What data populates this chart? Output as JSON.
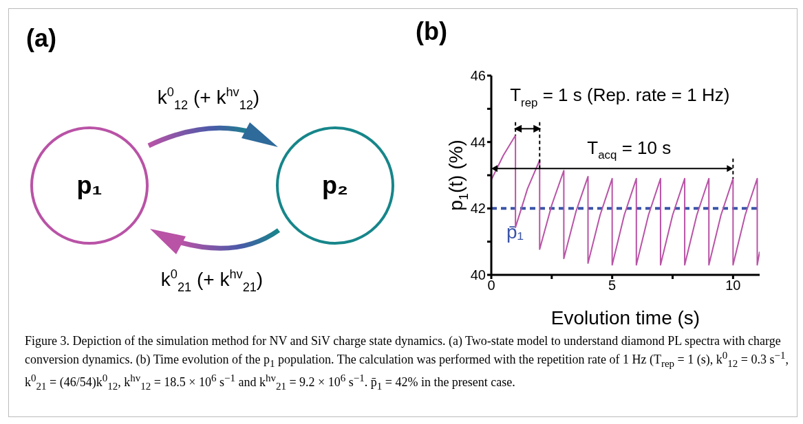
{
  "chart_data": [
    {
      "type": "other",
      "title": "(a)",
      "categories": [
        "p₁",
        "p₂"
      ],
      "colors": [
        "#b953a6",
        "#16868a"
      ],
      "annotations": [
        "k$^{0}$$_{12}$ (+ k$^{hv}$$_{12}$)",
        "k$^{0}$$_{21}$ (+ k$^{hv}$$_{21}$)"
      ]
    },
    {
      "type": "line",
      "title": "(b)",
      "xlabel": "Evolution time (s)",
      "ylabel": "p$_{1}$(t) (%)",
      "x": [
        0,
        0,
        0.5,
        1,
        1,
        1.5,
        2,
        2,
        2.5,
        3,
        3,
        3.5,
        4,
        4,
        4.5,
        5,
        5,
        5.5,
        6,
        6,
        6.5,
        7,
        7,
        7.5,
        8,
        8,
        8.5,
        9,
        9,
        9.5,
        10,
        10,
        10.5,
        11,
        11,
        11.1
      ],
      "series": [
        {
          "color": "#b953a6",
          "values": [
            46,
            42.86,
            43.6,
            44.2,
            41.43,
            42.6,
            43.45,
            40.77,
            42.1,
            43.14,
            40.49,
            41.9,
            42.96,
            40.35,
            41.8,
            42.9,
            40.3,
            41.8,
            42.9,
            40.3,
            41.8,
            42.9,
            40.3,
            41.8,
            42.9,
            40.3,
            41.8,
            42.9,
            40.3,
            41.8,
            42.9,
            40.3,
            41.8,
            42.9,
            40.3,
            40.7
          ]
        }
      ],
      "xlim": [
        0,
        11.1
      ],
      "xticks": [
        0,
        {
          "value": 2.5,
          "label": null
        },
        5,
        {
          "value": 7.5,
          "label": null
        },
        10
      ],
      "ylim": [
        40,
        46
      ],
      "yticks": [
        40,
        {
          "value": 41,
          "label": null
        },
        42,
        {
          "value": 43,
          "label": null
        },
        44,
        {
          "value": 45,
          "label": null
        },
        46
      ],
      "marker": "none",
      "line_style": "solid",
      "ref_lines": [
        {
          "axis": "y",
          "value": 42,
          "label": "p̄₁",
          "color": "#3b55a8",
          "line_style": "dashed"
        }
      ],
      "annotations": [
        {
          "text": "T$_{rep}$ = 1 s (Rep. rate = 1 Hz)",
          "x": 1,
          "y": 44.2
        },
        "T$_{acq}$ = 10 s",
        "Figure 3. Depiction of the simulation method for NV and SiV charge state dynamics. (a) Two-state model to understand diamond PL spectra with charge conversion dynamics. (b) Time evolution of the p$_{1}$ population. The calculation was performed with the repetition rate of 1 Hz (T$_{rep}$ = 1 (s), k$^{0}$$_{12}$ = 0.3 s$^{−1}$, k$^{0}$$_{21}$ = (46/54)k$^{0}$$_{12}$, k$^{hv}$$_{12}$ = 18.5 × 10$^{6}$ s$^{−1}$ and k$^{hv}$$_{21}$ = 9.2 × 10$^{6}$ s$^{−1}$. p̄$_{1}$ = 42% in the present case."
      ]
    }
  ]
}
